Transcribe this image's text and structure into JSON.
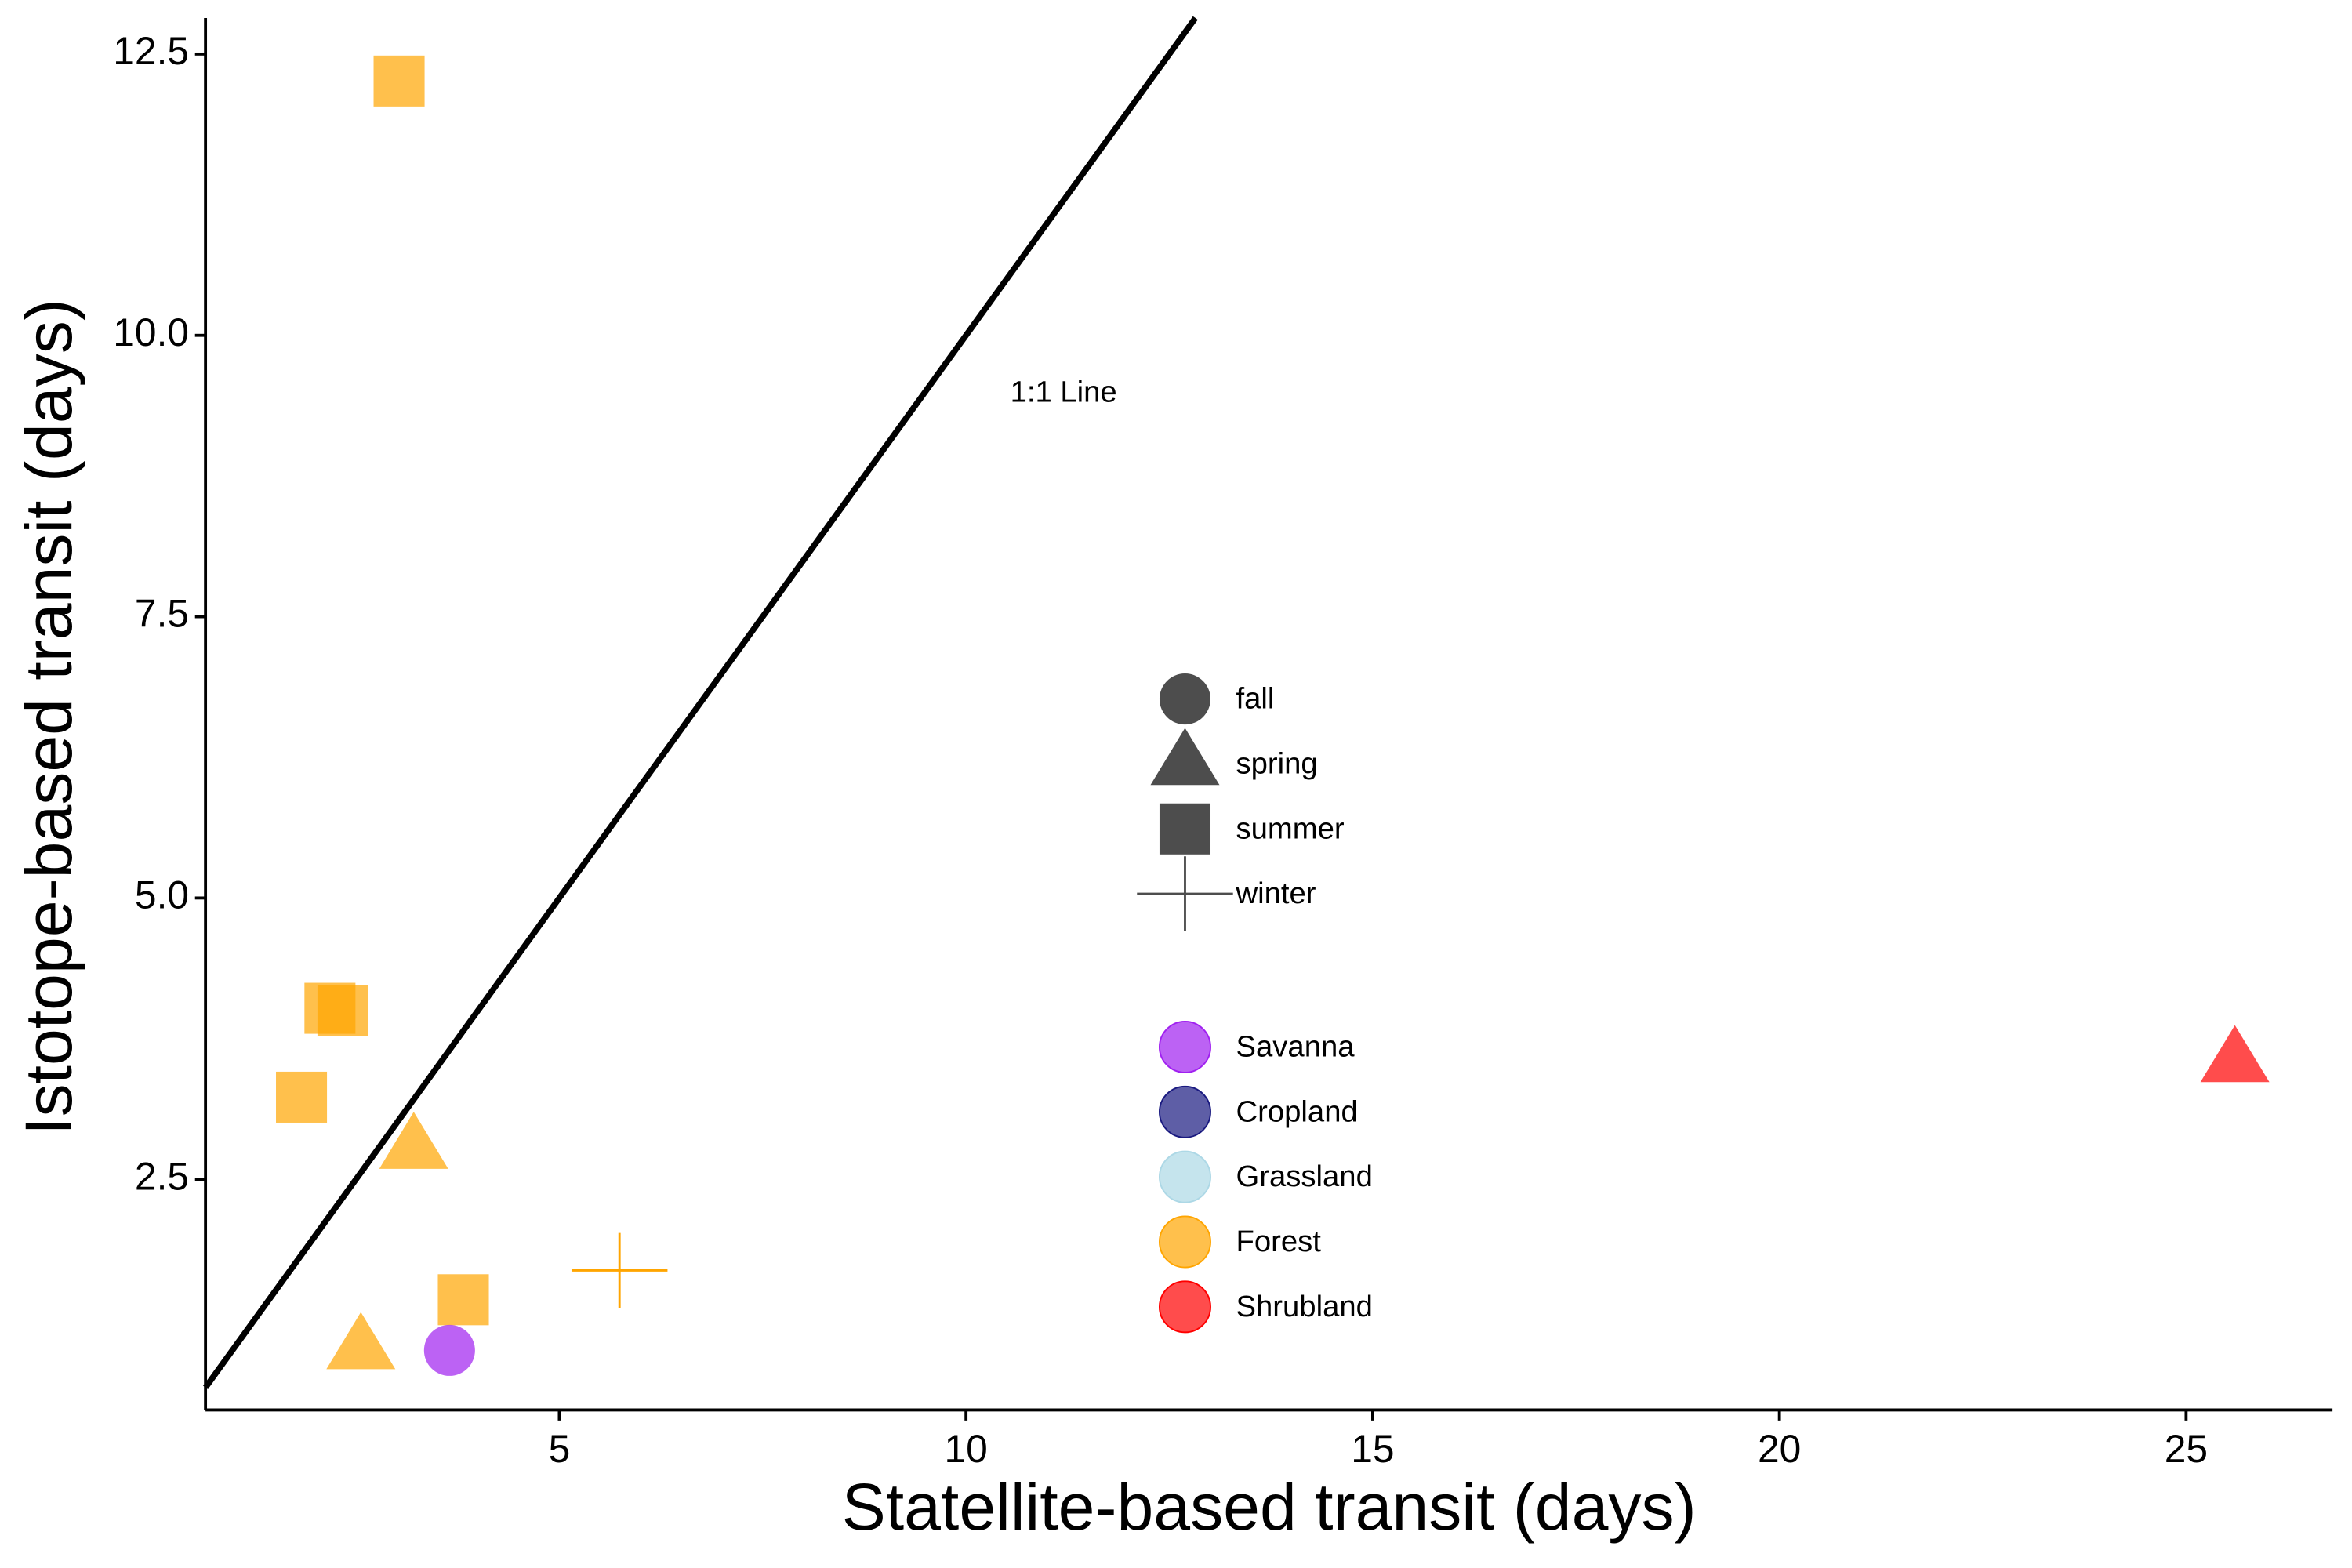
{
  "chart_data": {
    "type": "scatter",
    "x_label": "Statellite-based transit (days)",
    "y_label": "Istotope-based transit (days)",
    "annotation": {
      "text": "1:1 Line",
      "x": 11.2,
      "y": 9.48
    },
    "xlim": [
      0.65,
      26.8
    ],
    "ylim": [
      0.45,
      12.82
    ],
    "xticks": [
      5,
      10,
      15,
      20,
      25
    ],
    "yticks": [
      2.5,
      {
        "value": 5,
        "label": "5.0"
      },
      7.5,
      {
        "value": 10,
        "label": "10.0"
      },
      12.5
    ],
    "grid": false,
    "shape_legend": [
      {
        "label": "fall",
        "shape": "circle"
      },
      {
        "label": "spring",
        "shape": "triangle"
      },
      {
        "label": "summer",
        "shape": "square"
      },
      {
        "label": "winter",
        "shape": "plus"
      }
    ],
    "shape_legend_color": "#4d4d4d",
    "color_legend": [
      {
        "label": "Savanna",
        "color": "#a020f0"
      },
      {
        "label": "Cropland",
        "color": "#1a1a80"
      },
      {
        "label": "Grassland",
        "color": "#add8e6"
      },
      {
        "label": "Forest",
        "color": "#ffa500"
      },
      {
        "label": "Shrubland",
        "color": "#ff0000"
      }
    ],
    "points": {
      "x": [
        3.03,
        2.18,
        2.34,
        1.83,
        3.82,
        3.21,
        2.56,
        3.65,
        5.74,
        25.6
      ],
      "y": [
        12.26,
        4.02,
        4.0,
        3.23,
        1.43,
        2.78,
        1.0,
        0.98,
        1.69,
        3.55
      ],
      "season": [
        "summer",
        "summer",
        "summer",
        "summer",
        "summer",
        "spring",
        "spring",
        "fall",
        "winter",
        "spring"
      ],
      "landcover": [
        "Forest",
        "Forest",
        "Forest",
        "Forest",
        "Forest",
        "Forest",
        "Forest",
        "Savanna",
        "Forest",
        "Shrubland"
      ]
    }
  }
}
